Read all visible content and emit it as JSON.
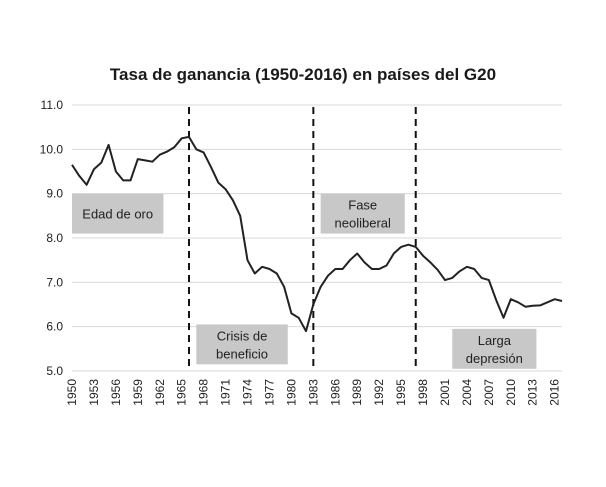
{
  "chart_data": {
    "type": "line",
    "title": "Tasa de ganancia (1950-2016) en países del G20",
    "xlabel": "",
    "ylabel": "",
    "xlim": [
      1950,
      2017
    ],
    "ylim": [
      5.0,
      11.0
    ],
    "yticks": [
      "5.0",
      "6.0",
      "7.0",
      "8.0",
      "9.0",
      "10.0",
      "11.0"
    ],
    "xticks": [
      "1950",
      "1953",
      "1956",
      "1959",
      "1962",
      "1965",
      "1968",
      "1971",
      "1974",
      "1977",
      "1980",
      "1983",
      "1986",
      "1989",
      "1992",
      "1995",
      "1998",
      "2001",
      "2004",
      "2007",
      "2010",
      "2013",
      "2016"
    ],
    "grid": "horizontal",
    "legend": "none",
    "series": [
      {
        "color": "#222222",
        "x": [
          1950,
          1951,
          1952,
          1953,
          1954,
          1955,
          1956,
          1957,
          1958,
          1959,
          1960,
          1961,
          1962,
          1963,
          1964,
          1965,
          1966,
          1967,
          1968,
          1969,
          1970,
          1971,
          1972,
          1973,
          1974,
          1975,
          1976,
          1977,
          1978,
          1979,
          1980,
          1981,
          1982,
          1983,
          1984,
          1985,
          1986,
          1987,
          1988,
          1989,
          1990,
          1991,
          1992,
          1993,
          1994,
          1995,
          1996,
          1997,
          1998,
          1999,
          2000,
          2001,
          2002,
          2003,
          2004,
          2005,
          2006,
          2007,
          2008,
          2009,
          2010,
          2011,
          2012,
          2013,
          2014,
          2015,
          2016,
          2017
        ],
        "y": [
          9.65,
          9.4,
          9.2,
          9.55,
          9.7,
          10.1,
          9.5,
          9.3,
          9.3,
          9.78,
          9.75,
          9.72,
          9.88,
          9.95,
          10.05,
          10.25,
          10.28,
          10.0,
          9.93,
          9.6,
          9.25,
          9.1,
          8.85,
          8.5,
          7.5,
          7.2,
          7.35,
          7.3,
          7.2,
          6.9,
          6.3,
          6.2,
          5.9,
          6.5,
          6.9,
          7.15,
          7.3,
          7.3,
          7.5,
          7.65,
          7.45,
          7.3,
          7.3,
          7.38,
          7.65,
          7.8,
          7.85,
          7.8,
          7.6,
          7.45,
          7.28,
          7.05,
          7.1,
          7.25,
          7.35,
          7.3,
          7.1,
          7.05,
          6.6,
          6.2,
          6.62,
          6.55,
          6.45,
          6.47,
          6.48,
          6.55,
          6.62,
          6.58
        ]
      }
    ],
    "vlines": [
      1966,
      1983,
      1997
    ],
    "annotations": [
      {
        "lines": [
          "Edad de oro"
        ],
        "x0": 1950,
        "x1": 1962.5,
        "y_top": 9.0,
        "y_bottom": 8.1
      },
      {
        "lines": [
          "Crisis de",
          "beneficio"
        ],
        "x0": 1967,
        "x1": 1979.5,
        "y_top": 6.05,
        "y_bottom": 5.15
      },
      {
        "lines": [
          "Fase",
          "neoliberal"
        ],
        "x0": 1984,
        "x1": 1995.5,
        "y_top": 9.0,
        "y_bottom": 8.1
      },
      {
        "lines": [
          "Larga",
          "depresión"
        ],
        "x0": 2002,
        "x1": 2013.5,
        "y_top": 5.95,
        "y_bottom": 5.05
      }
    ]
  }
}
